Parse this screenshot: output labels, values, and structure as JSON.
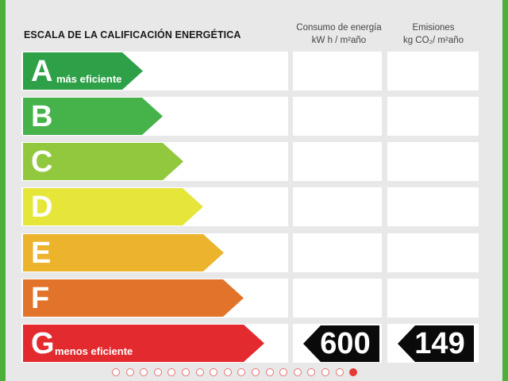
{
  "header": {
    "title": "ESCALA DE LA CALIFICACIÓN ENERGÉTICA",
    "consumo_line1": "Consumo de energía",
    "consumo_line2": "kW h / m²año",
    "emisiones_line1": "Emisiones",
    "emisiones_line2": "kg CO₂/ m²año"
  },
  "ratings": [
    {
      "letter": "A",
      "sublabel": "más eficiente",
      "color": "#2ea048"
    },
    {
      "letter": "B",
      "sublabel": "",
      "color": "#45b24a"
    },
    {
      "letter": "C",
      "sublabel": "",
      "color": "#92c83e"
    },
    {
      "letter": "D",
      "sublabel": "",
      "color": "#e6e63a"
    },
    {
      "letter": "E",
      "sublabel": "",
      "color": "#ecb32c"
    },
    {
      "letter": "F",
      "sublabel": "",
      "color": "#e2732a"
    },
    {
      "letter": "G",
      "sublabel": "menos eficiente",
      "color": "#e32b2f"
    }
  ],
  "values": {
    "consumo": "600",
    "emisiones": "149"
  },
  "carousel": {
    "total": 18,
    "active_index": 17
  }
}
